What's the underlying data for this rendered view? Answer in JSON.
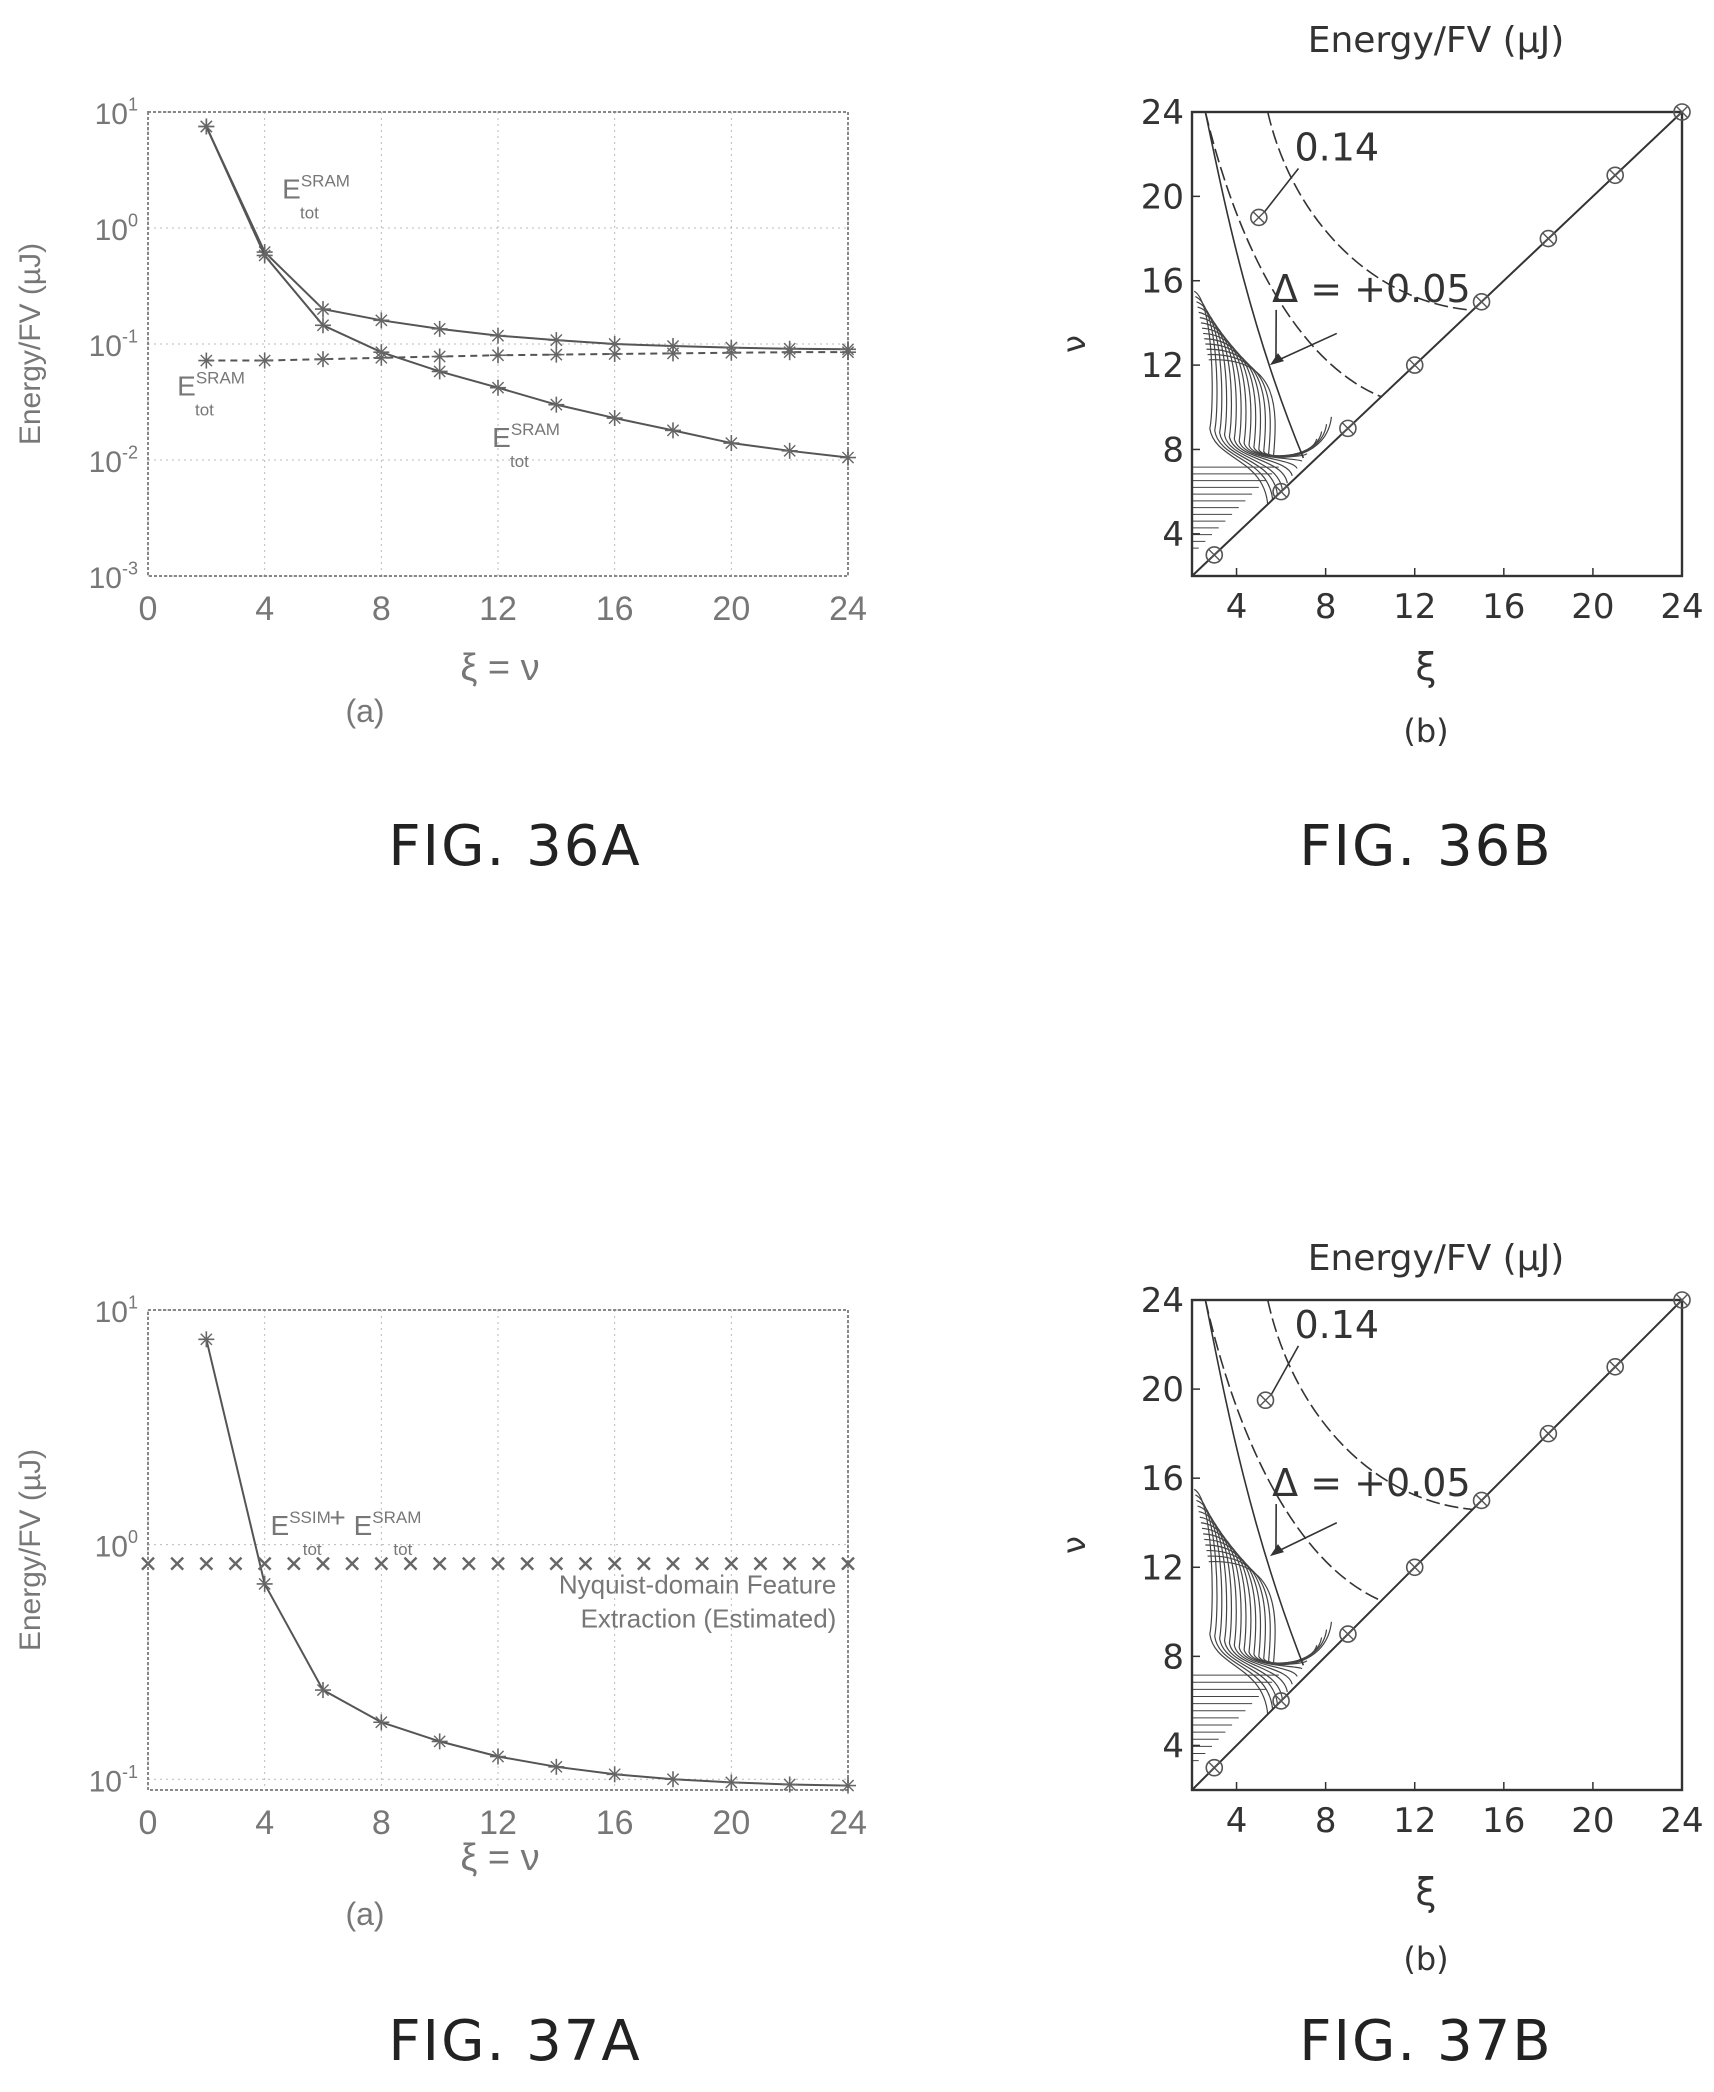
{
  "figures": [
    {
      "id": "fig36a",
      "label": "FIG. 36A"
    },
    {
      "id": "fig36b",
      "label": "FIG. 36B"
    },
    {
      "id": "fig37a",
      "label": "FIG. 37A"
    },
    {
      "id": "fig37b",
      "label": "FIG. 37B"
    }
  ],
  "chart_data": [
    {
      "id": "fig36a",
      "type": "line",
      "y_scale": "log",
      "ylabel": "Energy/FV (µJ)",
      "xlabel": "ξ = ν",
      "sublabel": "(a)",
      "xlim": [
        0,
        24
      ],
      "ylim": [
        0.001,
        10
      ],
      "xticks": [
        "0",
        "4",
        "8",
        "12",
        "16",
        "20",
        "24"
      ],
      "yticks": [
        {
          "base": "10",
          "exp": "1",
          "value": 10
        },
        {
          "base": "10",
          "exp": "0",
          "value": 1
        },
        {
          "base": "10",
          "exp": "-1",
          "value": 0.1
        },
        {
          "base": "10",
          "exp": "-2",
          "value": 0.01
        },
        {
          "base": "10",
          "exp": "-3",
          "value": 0.001
        }
      ],
      "grid": true,
      "series": [
        {
          "x": [
            2,
            4,
            6,
            8,
            10,
            12,
            14,
            16,
            18,
            20,
            22,
            24
          ],
          "values": [
            7.5,
            0.62,
            0.2,
            0.16,
            0.135,
            0.118,
            0.108,
            0.1,
            0.096,
            0.093,
            0.091,
            0.09
          ],
          "style": "solid"
        },
        {
          "x": [
            2,
            4,
            6,
            8,
            10,
            12,
            14,
            16,
            18,
            20,
            22,
            24
          ],
          "values": [
            7.5,
            0.58,
            0.145,
            0.085,
            0.058,
            0.042,
            0.03,
            0.023,
            0.018,
            0.014,
            0.012,
            0.0105
          ],
          "style": "solid"
        },
        {
          "x": [
            2,
            4,
            6,
            8,
            10,
            12,
            14,
            16,
            18,
            20,
            22,
            24
          ],
          "values": [
            0.072,
            0.072,
            0.074,
            0.076,
            0.078,
            0.08,
            0.081,
            0.082,
            0.083,
            0.084,
            0.085,
            0.085
          ],
          "style": "dashed"
        }
      ],
      "annotations": [
        {
          "base": "E",
          "sub": "tot",
          "sup": "SRAM",
          "x": 4.6,
          "y": 1.8
        },
        {
          "base": "E",
          "sub": "tot",
          "sup": "SRAM",
          "x": 1.0,
          "y": 0.036
        },
        {
          "base": "E",
          "sub": "tot",
          "sup": "SRAM",
          "x": 11.8,
          "y": 0.013
        }
      ]
    },
    {
      "id": "fig36b",
      "type": "contour",
      "title": "Energy/FV (µJ)",
      "xlabel": "ξ",
      "ylabel": "ν",
      "sublabel": "(b)",
      "xlim": [
        2,
        24
      ],
      "ylim": [
        2,
        24
      ],
      "xticks": [
        "4",
        "8",
        "12",
        "16",
        "20",
        "24"
      ],
      "yticks": [
        "4",
        "8",
        "12",
        "16",
        "20",
        "24"
      ],
      "diagonal_points": [
        [
          3,
          3
        ],
        [
          6,
          6
        ],
        [
          9,
          9
        ],
        [
          12,
          12
        ],
        [
          15,
          15
        ],
        [
          18,
          18
        ],
        [
          21,
          21
        ],
        [
          24,
          24
        ]
      ],
      "annotations": [
        {
          "text": "0.14",
          "at": [
            5,
            19
          ],
          "label_at": [
            6.6,
            21.7
          ]
        },
        {
          "text": "Δ = +0.05",
          "at": [
            5.5,
            12
          ],
          "label_at": [
            5.6,
            15
          ]
        }
      ]
    },
    {
      "id": "fig37a",
      "type": "line",
      "y_scale": "log",
      "ylabel": "Energy/FV (µJ)",
      "xlabel": "ξ = ν",
      "sublabel": "(a)",
      "xlim": [
        0,
        24
      ],
      "ylim": [
        0.09,
        10
      ],
      "xticks": [
        "0",
        "4",
        "8",
        "12",
        "16",
        "20",
        "24"
      ],
      "yticks": [
        {
          "base": "10",
          "exp": "1",
          "value": 10
        },
        {
          "base": "10",
          "exp": "0",
          "value": 1
        },
        {
          "base": "10",
          "exp": "-1",
          "value": 0.1
        }
      ],
      "grid": true,
      "series": [
        {
          "x": [
            2,
            4,
            6,
            8,
            10,
            12,
            14,
            16,
            18,
            20,
            22,
            24
          ],
          "values": [
            7.5,
            0.68,
            0.24,
            0.175,
            0.145,
            0.125,
            0.113,
            0.105,
            0.1,
            0.097,
            0.095,
            0.094
          ],
          "style": "solid"
        },
        {
          "x": [
            0,
            1,
            2,
            3,
            4,
            5,
            6,
            7,
            8,
            9,
            10,
            11,
            12,
            13,
            14,
            15,
            16,
            17,
            18,
            19,
            20,
            21,
            22,
            23,
            24
          ],
          "values": [
            0.83,
            0.83,
            0.83,
            0.83,
            0.83,
            0.83,
            0.83,
            0.83,
            0.83,
            0.83,
            0.83,
            0.83,
            0.83,
            0.83,
            0.83,
            0.83,
            0.83,
            0.83,
            0.83,
            0.83,
            0.83,
            0.83,
            0.83,
            0.83,
            0.83
          ],
          "style": "markers"
        }
      ],
      "annotations": [
        {
          "formula": {
            "a_base": "E",
            "a_sub": "tot",
            "a_sup": "SSIM",
            "op": "+",
            "b_base": "E",
            "b_sub": "tot",
            "b_sup": "SRAM"
          },
          "x": 4.2,
          "y": 1.1
        },
        {
          "lines": [
            "Nyquist-domain Feature",
            "Extraction (Estimated)"
          ],
          "x": 23.6,
          "y": 0.62
        }
      ]
    },
    {
      "id": "fig37b",
      "type": "contour",
      "title": "Energy/FV (µJ)",
      "xlabel": "ξ",
      "ylabel": "ν",
      "sublabel": "(b)",
      "xlim": [
        2,
        24
      ],
      "ylim": [
        2,
        24
      ],
      "xticks": [
        "4",
        "8",
        "12",
        "16",
        "20",
        "24"
      ],
      "yticks": [
        "4",
        "8",
        "12",
        "16",
        "20",
        "24"
      ],
      "diagonal_points": [
        [
          3,
          3
        ],
        [
          6,
          6
        ],
        [
          9,
          9
        ],
        [
          12,
          12
        ],
        [
          15,
          15
        ],
        [
          18,
          18
        ],
        [
          21,
          21
        ],
        [
          24,
          24
        ]
      ],
      "annotations": [
        {
          "text": "0.14",
          "at": [
            5.3,
            19.5
          ],
          "label_at": [
            6.6,
            22.3
          ]
        },
        {
          "text": "Δ = +0.05",
          "at": [
            5.5,
            12.5
          ],
          "label_at": [
            5.6,
            15.2
          ]
        }
      ]
    }
  ]
}
